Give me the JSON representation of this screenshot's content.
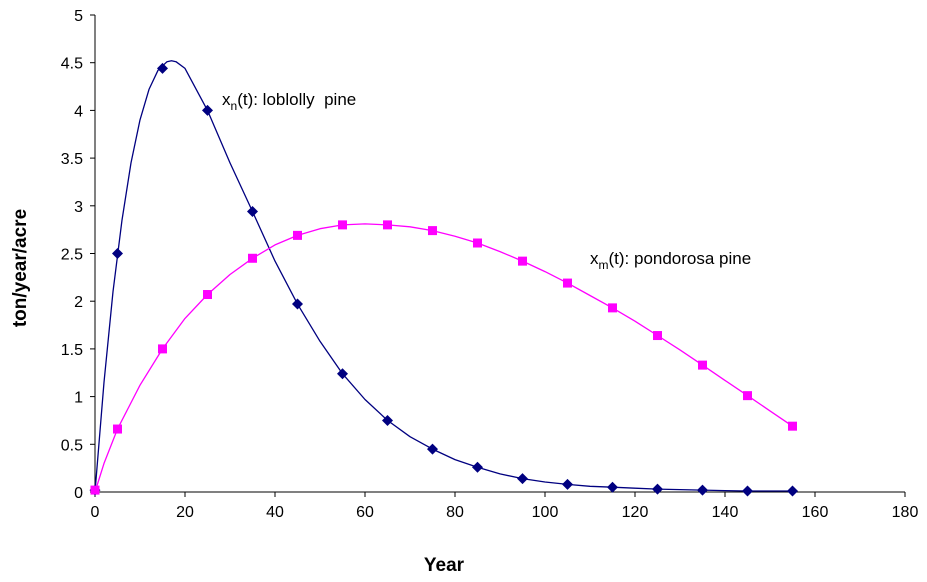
{
  "chart_data": {
    "type": "scatter",
    "xlabel": "Year",
    "ylabel": "ton/year/acre",
    "xlim": [
      0,
      180
    ],
    "ylim": [
      0,
      5
    ],
    "x_ticks": [
      "0",
      "20",
      "40",
      "60",
      "80",
      "100",
      "120",
      "140",
      "160",
      "180"
    ],
    "y_ticks": [
      "0",
      "0.5",
      "1",
      "1.5",
      "2",
      "2.5",
      "3",
      "3.5",
      "4",
      "4.5",
      "5"
    ],
    "grid": false,
    "legend": "none",
    "series": [
      {
        "label_main": "x",
        "label_sub": "n",
        "label_rest": "(t): loblolly  pine",
        "color": "#000080",
        "marker": "diamond",
        "points": [
          [
            0,
            0.02
          ],
          [
            5,
            2.5
          ],
          [
            15,
            4.44
          ],
          [
            25,
            4.0
          ],
          [
            35,
            2.94
          ],
          [
            45,
            1.97
          ],
          [
            55,
            1.24
          ],
          [
            65,
            0.75
          ],
          [
            75,
            0.45
          ],
          [
            85,
            0.26
          ],
          [
            95,
            0.14
          ],
          [
            105,
            0.08
          ],
          [
            115,
            0.05
          ],
          [
            125,
            0.03
          ],
          [
            135,
            0.02
          ],
          [
            145,
            0.01
          ],
          [
            155,
            0.01
          ]
        ],
        "curve": [
          [
            0,
            0.0
          ],
          [
            2,
            1.15
          ],
          [
            4,
            2.1
          ],
          [
            6,
            2.85
          ],
          [
            8,
            3.45
          ],
          [
            10,
            3.9
          ],
          [
            12,
            4.22
          ],
          [
            14,
            4.42
          ],
          [
            16,
            4.51
          ],
          [
            17,
            4.52
          ],
          [
            18,
            4.51
          ],
          [
            20,
            4.44
          ],
          [
            25,
            4.0
          ],
          [
            30,
            3.45
          ],
          [
            35,
            2.94
          ],
          [
            40,
            2.42
          ],
          [
            45,
            1.97
          ],
          [
            50,
            1.58
          ],
          [
            55,
            1.24
          ],
          [
            60,
            0.97
          ],
          [
            65,
            0.75
          ],
          [
            70,
            0.58
          ],
          [
            75,
            0.45
          ],
          [
            80,
            0.34
          ],
          [
            85,
            0.26
          ],
          [
            90,
            0.19
          ],
          [
            95,
            0.14
          ],
          [
            100,
            0.105
          ],
          [
            105,
            0.08
          ],
          [
            110,
            0.06
          ],
          [
            115,
            0.05
          ],
          [
            120,
            0.04
          ],
          [
            125,
            0.03
          ],
          [
            130,
            0.025
          ],
          [
            135,
            0.02
          ],
          [
            140,
            0.015
          ],
          [
            145,
            0.01
          ],
          [
            150,
            0.01
          ],
          [
            155,
            0.01
          ]
        ]
      },
      {
        "label_main": "x",
        "label_sub": "m",
        "label_rest": "(t): pondorosa pine",
        "color": "#ff00ff",
        "marker": "square",
        "points": [
          [
            0,
            0.02
          ],
          [
            5,
            0.66
          ],
          [
            15,
            1.5
          ],
          [
            25,
            2.07
          ],
          [
            35,
            2.45
          ],
          [
            45,
            2.69
          ],
          [
            55,
            2.8
          ],
          [
            65,
            2.8
          ],
          [
            75,
            2.74
          ],
          [
            85,
            2.61
          ],
          [
            95,
            2.42
          ],
          [
            105,
            2.19
          ],
          [
            115,
            1.93
          ],
          [
            125,
            1.64
          ],
          [
            135,
            1.33
          ],
          [
            145,
            1.01
          ],
          [
            155,
            0.69
          ]
        ],
        "curve": [
          [
            0,
            0.0
          ],
          [
            2,
            0.3
          ],
          [
            5,
            0.66
          ],
          [
            10,
            1.12
          ],
          [
            15,
            1.5
          ],
          [
            20,
            1.82
          ],
          [
            25,
            2.07
          ],
          [
            30,
            2.28
          ],
          [
            35,
            2.45
          ],
          [
            40,
            2.59
          ],
          [
            45,
            2.69
          ],
          [
            50,
            2.76
          ],
          [
            55,
            2.8
          ],
          [
            60,
            2.81
          ],
          [
            65,
            2.8
          ],
          [
            70,
            2.78
          ],
          [
            75,
            2.74
          ],
          [
            80,
            2.68
          ],
          [
            85,
            2.61
          ],
          [
            90,
            2.52
          ],
          [
            95,
            2.42
          ],
          [
            100,
            2.31
          ],
          [
            105,
            2.19
          ],
          [
            110,
            2.06
          ],
          [
            115,
            1.93
          ],
          [
            120,
            1.79
          ],
          [
            125,
            1.64
          ],
          [
            130,
            1.49
          ],
          [
            135,
            1.33
          ],
          [
            140,
            1.17
          ],
          [
            145,
            1.01
          ],
          [
            150,
            0.85
          ],
          [
            155,
            0.69
          ]
        ]
      }
    ]
  }
}
